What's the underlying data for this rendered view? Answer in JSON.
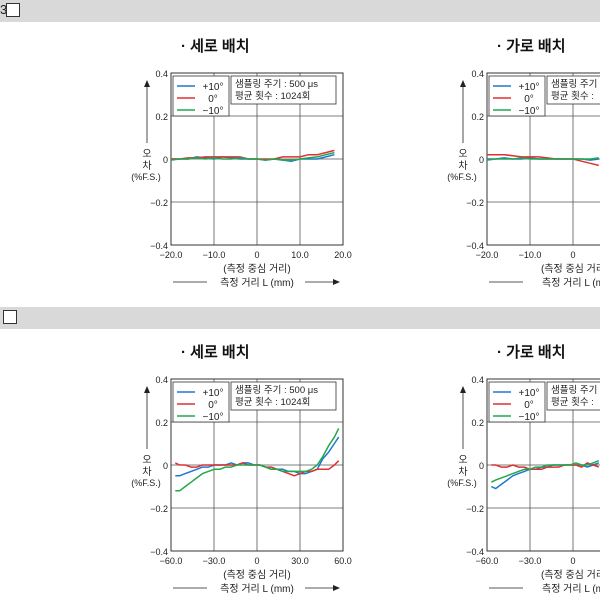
{
  "sections": [
    {
      "header": {
        "prefix": "3",
        "show_box": true
      }
    },
    {
      "header": {
        "prefix": "",
        "show_box": true
      }
    }
  ],
  "colors": {
    "plus10": "#1f78d1",
    "zero": "#e03030",
    "minus10": "#22a84a"
  },
  "chart_data": [
    {
      "type": "line",
      "title": "· 세로 배치",
      "xlabel": "(측정 중심 거리)",
      "xlabel2": "측정 거리 L  (mm)",
      "ylabel": [
        "오",
        "차",
        "(%F.S.)"
      ],
      "xlim": [
        -20,
        20
      ],
      "ylim": [
        -0.4,
        0.4
      ],
      "xticks": [
        -20,
        -10,
        0,
        10,
        20
      ],
      "xtick_labels": [
        "−20.0",
        "−10.0",
        "0",
        "10.0",
        "20.0"
      ],
      "yticks": [
        0.4,
        0.2,
        0,
        -0.2,
        -0.4
      ],
      "ytick_labels": [
        "0.4",
        "0.2",
        "0",
        "−0.2",
        "−0.4"
      ],
      "grid": true,
      "legend_placement": "top-left",
      "annotation": [
        "샘플링 주기 : 500 μs",
        "평균 횟수 : 1024회"
      ],
      "series": [
        {
          "name": "+10°",
          "color": "plus10",
          "x": [
            -20,
            -18,
            -16,
            -14,
            -12,
            -10,
            -8,
            -6,
            -4,
            -2,
            0,
            2,
            4,
            6,
            8,
            10,
            12,
            14,
            16,
            18
          ],
          "y": [
            0.0,
            0.0,
            0.0,
            0.01,
            0.005,
            0.0,
            0.01,
            0.005,
            0.0,
            0.0,
            0.0,
            -0.005,
            0.0,
            -0.005,
            -0.01,
            0.0,
            0.0,
            0.0,
            0.01,
            0.02
          ]
        },
        {
          "name": "0°",
          "color": "zero",
          "x": [
            -20,
            -18,
            -16,
            -14,
            -12,
            -10,
            -8,
            -6,
            -4,
            -2,
            0,
            2,
            4,
            6,
            8,
            10,
            12,
            14,
            16,
            18
          ],
          "y": [
            0.0,
            0.0,
            0.005,
            0.005,
            0.01,
            0.01,
            0.01,
            0.01,
            0.01,
            0.0,
            0.0,
            0.0,
            0.0,
            0.01,
            0.01,
            0.01,
            0.02,
            0.02,
            0.03,
            0.04
          ]
        },
        {
          "name": "−10°",
          "color": "minus10",
          "x": [
            -20,
            -18,
            -16,
            -14,
            -12,
            -10,
            -8,
            -6,
            -4,
            -2,
            0,
            2,
            4,
            6,
            8,
            10,
            12,
            14,
            16,
            18
          ],
          "y": [
            -0.005,
            0.0,
            0.0,
            0.005,
            0.0,
            0.005,
            0.0,
            0.0,
            0.005,
            0.0,
            0.0,
            -0.005,
            0.0,
            -0.005,
            -0.005,
            0.0,
            0.005,
            0.01,
            0.02,
            0.03
          ]
        }
      ]
    },
    {
      "type": "line",
      "title": "· 가로 배치",
      "xlabel": "(측정 중심 거리",
      "xlabel2": "측정 거리 L  (m",
      "ylabel": [
        "오",
        "차",
        "(%F.S.)"
      ],
      "xlim": [
        -20,
        20
      ],
      "ylim": [
        -0.4,
        0.4
      ],
      "xticks": [
        -20,
        -10,
        0
      ],
      "xtick_labels": [
        "−20.0",
        "−10.0",
        "0"
      ],
      "yticks": [
        0.4,
        0.2,
        0,
        -0.2,
        -0.4
      ],
      "ytick_labels": [
        "0.4",
        "0.2",
        "0",
        "−0.2",
        "−0.4"
      ],
      "grid": true,
      "legend_placement": "top-left",
      "annotation": [
        "샘플링 주기",
        "평균 횟수 :"
      ],
      "series": [
        {
          "name": "+10°",
          "color": "plus10",
          "x": [
            -20,
            -18,
            -16,
            -14,
            -12,
            -10,
            -8,
            -6,
            -4,
            -2,
            0,
            2,
            4,
            6
          ],
          "y": [
            0.0,
            0.0,
            0.005,
            0.0,
            0.0,
            0.005,
            0.0,
            0.0,
            0.0,
            0.0,
            0.0,
            0.0,
            -0.005,
            0.0
          ]
        },
        {
          "name": "0°",
          "color": "zero",
          "x": [
            -20,
            -18,
            -16,
            -14,
            -12,
            -10,
            -8,
            -6,
            -4,
            -2,
            0,
            2,
            4,
            6
          ],
          "y": [
            0.02,
            0.02,
            0.02,
            0.015,
            0.01,
            0.01,
            0.01,
            0.005,
            0.0,
            0.0,
            0.0,
            -0.01,
            -0.02,
            -0.03
          ]
        },
        {
          "name": "−10°",
          "color": "minus10",
          "x": [
            -20,
            -18,
            -16,
            -14,
            -12,
            -10,
            -8,
            -6,
            -4,
            -2,
            0,
            2,
            4,
            6
          ],
          "y": [
            -0.005,
            0.0,
            0.0,
            0.0,
            0.005,
            0.0,
            0.0,
            0.0,
            0.0,
            0.0,
            0.0,
            0.0,
            0.0,
            0.005
          ]
        }
      ]
    },
    {
      "type": "line",
      "title": "· 세로 배치",
      "xlabel": "(측정 중심 거리)",
      "xlabel2": "측정 거리 L  (mm)",
      "ylabel": [
        "오",
        "차",
        "(%F.S.)"
      ],
      "xlim": [
        -60,
        60
      ],
      "ylim": [
        -0.4,
        0.4
      ],
      "xticks": [
        -60,
        -30,
        0,
        30,
        60
      ],
      "xtick_labels": [
        "−60.0",
        "−30.0",
        "0",
        "30.0",
        "60.0"
      ],
      "yticks": [
        0.4,
        0.2,
        0,
        -0.2,
        -0.4
      ],
      "ytick_labels": [
        "0.4",
        "0.2",
        "0",
        "−0.2",
        "−0.4"
      ],
      "grid": true,
      "legend_placement": "top-left",
      "annotation": [
        "샘플링 주기 : 500 μs",
        "평균 횟수 : 1024회"
      ],
      "series": [
        {
          "name": "+10°",
          "color": "plus10",
          "x": [
            -57,
            -54,
            -50,
            -46,
            -42,
            -38,
            -34,
            -30,
            -26,
            -22,
            -18,
            -14,
            -10,
            -6,
            -2,
            2,
            6,
            10,
            14,
            18,
            22,
            26,
            30,
            34,
            38,
            42,
            46,
            50,
            54,
            57
          ],
          "y": [
            -0.05,
            -0.05,
            -0.04,
            -0.03,
            -0.02,
            -0.01,
            -0.01,
            0.0,
            0.0,
            0.0,
            0.01,
            0.0,
            0.01,
            0.01,
            0.0,
            0.0,
            -0.01,
            -0.02,
            -0.02,
            -0.02,
            -0.03,
            -0.03,
            -0.04,
            -0.04,
            -0.03,
            -0.02,
            0.03,
            0.06,
            0.1,
            0.13
          ]
        },
        {
          "name": "0°",
          "color": "zero",
          "x": [
            -57,
            -54,
            -50,
            -46,
            -42,
            -38,
            -34,
            -30,
            -26,
            -22,
            -18,
            -14,
            -10,
            -6,
            -2,
            2,
            6,
            10,
            14,
            18,
            22,
            26,
            30,
            34,
            38,
            42,
            46,
            50,
            54,
            57
          ],
          "y": [
            0.01,
            0.0,
            0.0,
            -0.01,
            -0.01,
            0.0,
            0.0,
            0.0,
            0.0,
            0.0,
            0.0,
            0.0,
            0.01,
            0.0,
            0.0,
            0.0,
            -0.01,
            -0.01,
            -0.02,
            -0.03,
            -0.04,
            -0.05,
            -0.04,
            -0.03,
            -0.03,
            -0.02,
            -0.02,
            -0.02,
            0.0,
            0.02
          ]
        },
        {
          "name": "−10°",
          "color": "minus10",
          "x": [
            -57,
            -54,
            -50,
            -46,
            -42,
            -38,
            -34,
            -30,
            -26,
            -22,
            -18,
            -14,
            -10,
            -6,
            -2,
            2,
            6,
            10,
            14,
            18,
            22,
            26,
            30,
            34,
            38,
            42,
            46,
            50,
            54,
            57
          ],
          "y": [
            -0.12,
            -0.12,
            -0.1,
            -0.08,
            -0.06,
            -0.04,
            -0.03,
            -0.02,
            -0.02,
            -0.01,
            -0.01,
            0.0,
            0.0,
            0.0,
            0.0,
            0.0,
            -0.01,
            -0.02,
            -0.02,
            -0.03,
            -0.03,
            -0.03,
            -0.03,
            -0.03,
            -0.02,
            0.0,
            0.04,
            0.09,
            0.13,
            0.17
          ]
        }
      ]
    },
    {
      "type": "line",
      "title": "· 가로 배치",
      "xlabel": "(측정 중심 거리",
      "xlabel2": "측정 거리 L  (m",
      "ylabel": [
        "오",
        "차",
        "(%F.S.)"
      ],
      "xlim": [
        -60,
        60
      ],
      "ylim": [
        -0.4,
        0.4
      ],
      "xticks": [
        -60,
        -30,
        0
      ],
      "xtick_labels": [
        "−60.0",
        "−30.0",
        "0"
      ],
      "yticks": [
        0.4,
        0.2,
        0,
        -0.2,
        -0.4
      ],
      "ytick_labels": [
        "0.4",
        "0.2",
        "0",
        "−0.2",
        "−0.4"
      ],
      "grid": true,
      "legend_placement": "top-left",
      "annotation": [
        "샘플링 주기",
        "평균 횟수 :"
      ],
      "series": [
        {
          "name": "+10°",
          "color": "plus10",
          "x": [
            -57,
            -54,
            -50,
            -46,
            -42,
            -38,
            -34,
            -30,
            -26,
            -22,
            -18,
            -14,
            -10,
            -6,
            -2,
            2,
            6,
            10,
            14,
            18
          ],
          "y": [
            -0.1,
            -0.11,
            -0.09,
            -0.07,
            -0.05,
            -0.04,
            -0.03,
            -0.02,
            -0.02,
            -0.01,
            -0.01,
            0.0,
            0.0,
            0.0,
            0.0,
            0.0,
            0.0,
            -0.01,
            0.0,
            0.01
          ]
        },
        {
          "name": "0°",
          "color": "zero",
          "x": [
            -57,
            -54,
            -50,
            -46,
            -42,
            -38,
            -34,
            -30,
            -26,
            -22,
            -18,
            -14,
            -10,
            -6,
            -2,
            2,
            6,
            10,
            14,
            18
          ],
          "y": [
            0.0,
            0.0,
            -0.01,
            -0.01,
            0.0,
            -0.01,
            -0.01,
            -0.02,
            -0.02,
            -0.02,
            -0.01,
            -0.01,
            -0.01,
            0.0,
            0.0,
            0.0,
            -0.01,
            0.01,
            0.0,
            -0.01
          ]
        },
        {
          "name": "−10°",
          "color": "minus10",
          "x": [
            -57,
            -54,
            -50,
            -46,
            -42,
            -38,
            -34,
            -30,
            -26,
            -22,
            -18,
            -14,
            -10,
            -6,
            -2,
            2,
            6,
            10,
            14,
            18
          ],
          "y": [
            -0.08,
            -0.07,
            -0.06,
            -0.05,
            -0.04,
            -0.03,
            -0.02,
            -0.02,
            -0.01,
            -0.01,
            0.0,
            0.0,
            0.0,
            0.0,
            0.0,
            0.01,
            0.0,
            0.0,
            0.01,
            0.02
          ]
        }
      ]
    }
  ]
}
